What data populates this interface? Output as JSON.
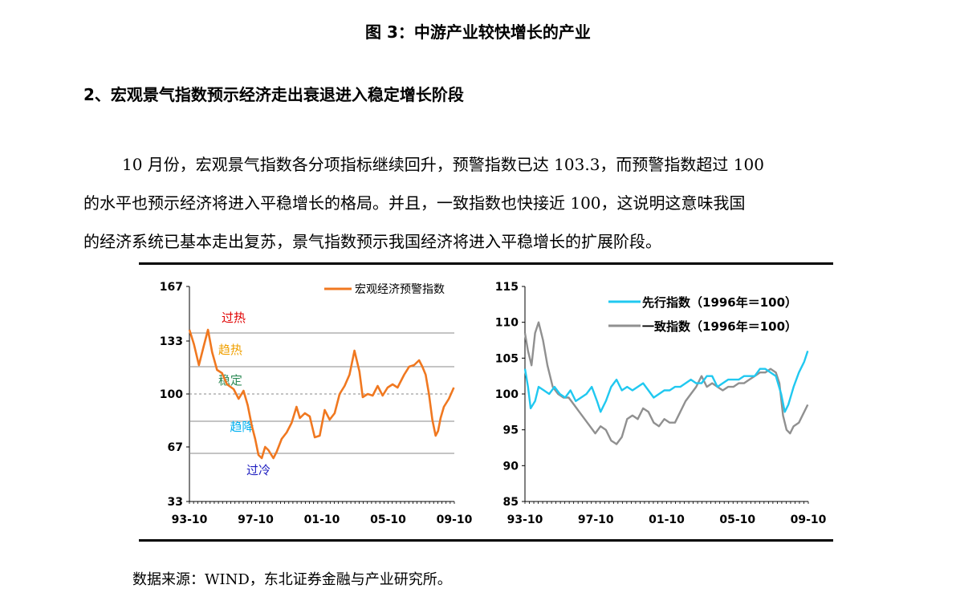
{
  "figure_caption": "图 3：中游产业较快增长的产业",
  "section_heading": "2、宏观景气指数预示经济走出衰退进入稳定增长阶段",
  "paragraph_lines": [
    "10 月份，宏观景气指数各分项指标继续回升，预警指数已达 103.3，而预警指数超过 100",
    "的水平也预示经济将进入平稳增长的格局。并且，一致指数也快接近 100，这说明这意味我国",
    "的经济系统已基本走出复苏，景气指数预示我国经济将进入平稳增长的扩展阶段。"
  ],
  "source_note": "数据来源：WIND，东北证券金融与产业研究所。",
  "chart_data": [
    {
      "type": "line",
      "x_ticks": [
        "93-10",
        "97-10",
        "01-10",
        "05-10",
        "09-10"
      ],
      "y_ticks": [
        "167",
        "133",
        "100",
        "67",
        "33"
      ],
      "ylim": [
        33,
        167
      ],
      "grid": false,
      "threshold_lines": [
        83,
        100,
        117,
        138,
        63
      ],
      "zones": [
        {
          "label": "过热",
          "color": "#e00000"
        },
        {
          "label": "趋热",
          "color": "#f0a000"
        },
        {
          "label": "稳定",
          "color": "#2e8b57"
        },
        {
          "label": "趋降",
          "color": "#00b0f0"
        },
        {
          "label": "过冷",
          "color": "#2020c0"
        }
      ],
      "legend_position": "top-right",
      "series": [
        {
          "name": "宏观经济预警指数",
          "color": "#f07820",
          "points": [
            [
              1993.83,
              140
            ],
            [
              1994.1,
              131
            ],
            [
              1994.4,
              118
            ],
            [
              1994.7,
              130
            ],
            [
              1994.95,
              140
            ],
            [
              1995.2,
              126
            ],
            [
              1995.5,
              115
            ],
            [
              1995.8,
              113
            ],
            [
              1996.1,
              106
            ],
            [
              1996.5,
              103
            ],
            [
              1996.8,
              97
            ],
            [
              1997.1,
              102
            ],
            [
              1997.35,
              93
            ],
            [
              1997.6,
              80
            ],
            [
              1997.8,
              72
            ],
            [
              1998.0,
              62
            ],
            [
              1998.2,
              60
            ],
            [
              1998.4,
              67
            ],
            [
              1998.6,
              65
            ],
            [
              1998.9,
              60
            ],
            [
              1999.1,
              64
            ],
            [
              1999.4,
              72
            ],
            [
              1999.7,
              76
            ],
            [
              2000.0,
              82
            ],
            [
              2000.3,
              92
            ],
            [
              2000.5,
              85
            ],
            [
              2000.8,
              88
            ],
            [
              2001.1,
              86
            ],
            [
              2001.4,
              73
            ],
            [
              2001.7,
              74
            ],
            [
              2002.0,
              90
            ],
            [
              2002.3,
              84
            ],
            [
              2002.6,
              88
            ],
            [
              2002.9,
              100
            ],
            [
              2003.2,
              105
            ],
            [
              2003.5,
              112
            ],
            [
              2003.8,
              127
            ],
            [
              2004.1,
              114
            ],
            [
              2004.3,
              98
            ],
            [
              2004.6,
              100
            ],
            [
              2004.9,
              99
            ],
            [
              2005.2,
              105
            ],
            [
              2005.5,
              99
            ],
            [
              2005.8,
              104
            ],
            [
              2006.1,
              106
            ],
            [
              2006.4,
              104
            ],
            [
              2006.8,
              112
            ],
            [
              2007.1,
              117
            ],
            [
              2007.4,
              118
            ],
            [
              2007.7,
              121
            ],
            [
              2007.9,
              117
            ],
            [
              2008.1,
              112
            ],
            [
              2008.3,
              100
            ],
            [
              2008.5,
              84
            ],
            [
              2008.7,
              74
            ],
            [
              2008.85,
              77
            ],
            [
              2009.0,
              85
            ],
            [
              2009.2,
              92
            ],
            [
              2009.5,
              97
            ],
            [
              2009.8,
              104
            ]
          ]
        }
      ]
    },
    {
      "type": "line",
      "x_ticks": [
        "93-10",
        "97-10",
        "01-10",
        "05-10",
        "09-10"
      ],
      "y_ticks": [
        "115",
        "110",
        "105",
        "100",
        "95",
        "90",
        "85"
      ],
      "ylim": [
        85,
        115
      ],
      "grid": false,
      "legend_position": "top-right",
      "series": [
        {
          "name": "先行指数（1996年＝100）",
          "color": "#20c8f0",
          "points": [
            [
              1993.83,
              103.5
            ],
            [
              1994.0,
              101
            ],
            [
              1994.15,
              98
            ],
            [
              1994.4,
              99
            ],
            [
              1994.6,
              101
            ],
            [
              1994.9,
              100.5
            ],
            [
              1995.2,
              100
            ],
            [
              1995.5,
              101
            ],
            [
              1995.8,
              100
            ],
            [
              1996.1,
              99.5
            ],
            [
              1996.4,
              100.5
            ],
            [
              1996.7,
              99
            ],
            [
              1997.0,
              99.5
            ],
            [
              1997.3,
              100
            ],
            [
              1997.6,
              101
            ],
            [
              1997.9,
              99
            ],
            [
              1998.1,
              97.5
            ],
            [
              1998.4,
              99
            ],
            [
              1998.7,
              101
            ],
            [
              1999.0,
              102
            ],
            [
              1999.3,
              100.5
            ],
            [
              1999.6,
              101
            ],
            [
              1999.9,
              100.5
            ],
            [
              2000.2,
              101
            ],
            [
              2000.5,
              101.5
            ],
            [
              2000.8,
              100.5
            ],
            [
              2001.1,
              99.5
            ],
            [
              2001.4,
              100
            ],
            [
              2001.7,
              100.5
            ],
            [
              2002.0,
              100.5
            ],
            [
              2002.3,
              101
            ],
            [
              2002.6,
              101
            ],
            [
              2002.9,
              101.5
            ],
            [
              2003.2,
              102
            ],
            [
              2003.5,
              101.5
            ],
            [
              2003.8,
              101.5
            ],
            [
              2004.1,
              102.5
            ],
            [
              2004.4,
              102.5
            ],
            [
              2004.7,
              101
            ],
            [
              2005.0,
              101.5
            ],
            [
              2005.3,
              102
            ],
            [
              2005.6,
              102
            ],
            [
              2005.9,
              102
            ],
            [
              2006.2,
              102.5
            ],
            [
              2006.5,
              102.5
            ],
            [
              2006.8,
              102.5
            ],
            [
              2007.1,
              103.5
            ],
            [
              2007.4,
              103.5
            ],
            [
              2007.7,
              103
            ],
            [
              2008.0,
              102.5
            ],
            [
              2008.3,
              100
            ],
            [
              2008.5,
              97.5
            ],
            [
              2008.7,
              98.5
            ],
            [
              2009.0,
              101
            ],
            [
              2009.3,
              103
            ],
            [
              2009.6,
              104.5
            ],
            [
              2009.8,
              106
            ]
          ]
        },
        {
          "name": "一致指数（1996年＝100）",
          "color": "#909090",
          "points": [
            [
              1993.83,
              108.5
            ],
            [
              1994.0,
              106
            ],
            [
              1994.2,
              104
            ],
            [
              1994.4,
              108.5
            ],
            [
              1994.6,
              110
            ],
            [
              1994.85,
              107.5
            ],
            [
              1995.1,
              104
            ],
            [
              1995.4,
              101
            ],
            [
              1995.7,
              100
            ],
            [
              1996.0,
              99.5
            ],
            [
              1996.3,
              99.5
            ],
            [
              1996.6,
              98.5
            ],
            [
              1996.9,
              97.5
            ],
            [
              1997.2,
              96.5
            ],
            [
              1997.5,
              95.5
            ],
            [
              1997.8,
              94.5
            ],
            [
              1998.1,
              95.5
            ],
            [
              1998.4,
              95
            ],
            [
              1998.7,
              93.5
            ],
            [
              1999.0,
              93
            ],
            [
              1999.3,
              94
            ],
            [
              1999.6,
              96.5
            ],
            [
              1999.9,
              97
            ],
            [
              2000.2,
              96.5
            ],
            [
              2000.5,
              98
            ],
            [
              2000.8,
              97.5
            ],
            [
              2001.1,
              96
            ],
            [
              2001.4,
              95.5
            ],
            [
              2001.7,
              96.5
            ],
            [
              2002.0,
              96
            ],
            [
              2002.3,
              96
            ],
            [
              2002.6,
              97.5
            ],
            [
              2002.9,
              99
            ],
            [
              2003.2,
              100
            ],
            [
              2003.5,
              101
            ],
            [
              2003.8,
              102.5
            ],
            [
              2004.1,
              101
            ],
            [
              2004.4,
              101.5
            ],
            [
              2004.7,
              101
            ],
            [
              2005.0,
              100.5
            ],
            [
              2005.3,
              101
            ],
            [
              2005.6,
              101
            ],
            [
              2005.9,
              101.5
            ],
            [
              2006.2,
              101.5
            ],
            [
              2006.5,
              102
            ],
            [
              2006.8,
              102.5
            ],
            [
              2007.1,
              103
            ],
            [
              2007.4,
              103
            ],
            [
              2007.7,
              103.5
            ],
            [
              2008.0,
              103
            ],
            [
              2008.2,
              101.5
            ],
            [
              2008.4,
              97
            ],
            [
              2008.6,
              95
            ],
            [
              2008.8,
              94.5
            ],
            [
              2009.0,
              95.5
            ],
            [
              2009.3,
              96
            ],
            [
              2009.6,
              97.5
            ],
            [
              2009.8,
              98.5
            ]
          ]
        }
      ]
    }
  ]
}
